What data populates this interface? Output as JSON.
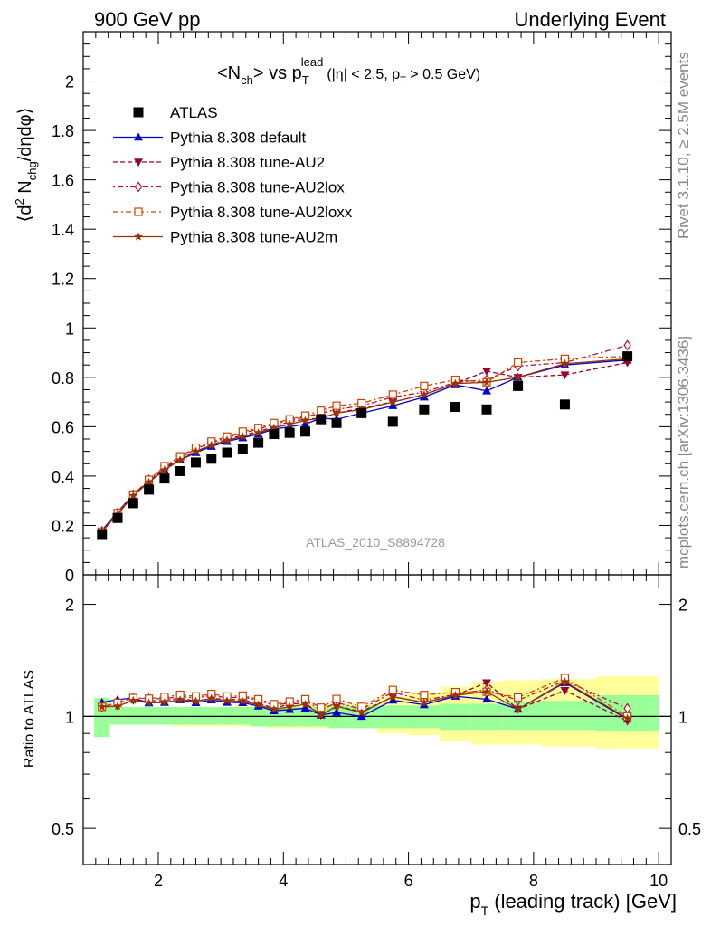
{
  "header": {
    "left": "900 GeV pp",
    "right": "Underlying Event"
  },
  "side_labels": {
    "rivet": "Rivet 3.1.10, ≥ 2.5M events",
    "mcplots": "mcplots.cern.ch [arXiv:1306.3436]"
  },
  "main_plot": {
    "title_parts": {
      "open": "<N",
      "sub1": "ch",
      "mid": "> vs p",
      "sub2": "T",
      "sup2": "lead",
      "cond1": "(|η| < 2.5, p",
      "sub3": "T",
      "cond2": " > 0.5 GeV)"
    },
    "ylabel_parts": {
      "a": "⟨d",
      "b": "2",
      "c": " N",
      "d": "chg",
      "e": "/dηdφ⟩"
    },
    "watermark": "ATLAS_2010_S8894728",
    "ylim": [
      0,
      2.2
    ],
    "yticks": [
      "0",
      "0.2",
      "0.4",
      "0.6",
      "0.8",
      "1",
      "1.2",
      "1.4",
      "1.6",
      "1.8",
      "2"
    ]
  },
  "ratio_plot": {
    "ylabel": "Ratio to ATLAS",
    "log_scale": true,
    "ylim": [
      0.4,
      2.4
    ],
    "yticks": [
      "0.5",
      "1",
      "2"
    ]
  },
  "xaxis": {
    "label_parts": {
      "p": "p",
      "sub": "T",
      "rest": " (leading track) [GeV]"
    },
    "xlim": [
      0.8,
      10.2
    ],
    "xticks": [
      "2",
      "4",
      "6",
      "8",
      "10"
    ]
  },
  "legend": {
    "position": "top-left",
    "entries": [
      "ATLAS",
      "Pythia 8.308 default",
      "Pythia 8.308 tune-AU2",
      "Pythia 8.308 tune-AU2lox",
      "Pythia 8.308 tune-AU2loxx",
      "Pythia 8.308 tune-AU2m"
    ]
  },
  "colors": {
    "data": "#000000",
    "default": "#0000cc",
    "au2": "#990033",
    "au2lox": "#bb1133",
    "au2loxx": "#cc4400",
    "au2m": "#993300",
    "band_inner": "#99ff99",
    "band_outer": "#ffff99"
  },
  "chart_data": {
    "type": "scatter",
    "x": [
      1.1,
      1.35,
      1.6,
      1.85,
      2.1,
      2.35,
      2.6,
      2.85,
      3.1,
      3.35,
      3.6,
      3.85,
      4.1,
      4.35,
      4.6,
      4.85,
      5.25,
      5.75,
      6.25,
      6.75,
      7.25,
      7.75,
      8.5,
      9.5
    ],
    "data": {
      "name": "ATLAS",
      "values": [
        0.165,
        0.23,
        0.29,
        0.345,
        0.39,
        0.42,
        0.455,
        0.47,
        0.495,
        0.51,
        0.535,
        0.57,
        0.575,
        0.58,
        0.63,
        0.615,
        0.655,
        0.62,
        0.67,
        0.68,
        0.67,
        0.765,
        0.69,
        0.885
      ],
      "band_inner": [
        [
          0.88,
          1.12
        ],
        [
          0.95,
          1.06
        ],
        [
          0.95,
          1.06
        ],
        [
          0.95,
          1.06
        ],
        [
          0.95,
          1.06
        ],
        [
          0.95,
          1.06
        ],
        [
          0.95,
          1.06
        ],
        [
          0.95,
          1.06
        ],
        [
          0.95,
          1.06
        ],
        [
          0.95,
          1.06
        ],
        [
          0.94,
          1.06
        ],
        [
          0.94,
          1.06
        ],
        [
          0.94,
          1.06
        ],
        [
          0.94,
          1.06
        ],
        [
          0.94,
          1.06
        ],
        [
          0.93,
          1.07
        ],
        [
          0.93,
          1.07
        ],
        [
          0.93,
          1.07
        ],
        [
          0.93,
          1.07
        ],
        [
          0.92,
          1.08
        ],
        [
          0.92,
          1.08
        ],
        [
          0.92,
          1.09
        ],
        [
          0.92,
          1.1
        ],
        [
          0.91,
          1.14
        ]
      ],
      "band_outer": [
        [
          0.92,
          1.09
        ],
        [
          0.95,
          1.06
        ],
        [
          0.95,
          1.06
        ],
        [
          0.95,
          1.06
        ],
        [
          0.95,
          1.06
        ],
        [
          0.94,
          1.06
        ],
        [
          0.94,
          1.06
        ],
        [
          0.94,
          1.06
        ],
        [
          0.94,
          1.06
        ],
        [
          0.94,
          1.07
        ],
        [
          0.94,
          1.07
        ],
        [
          0.93,
          1.07
        ],
        [
          0.93,
          1.07
        ],
        [
          0.93,
          1.07
        ],
        [
          0.93,
          1.07
        ],
        [
          0.93,
          1.08
        ],
        [
          0.93,
          1.08
        ],
        [
          0.9,
          1.13
        ],
        [
          0.89,
          1.16
        ],
        [
          0.86,
          1.2
        ],
        [
          0.84,
          1.24
        ],
        [
          0.84,
          1.25
        ],
        [
          0.83,
          1.26
        ],
        [
          0.82,
          1.28
        ]
      ]
    },
    "series": [
      {
        "name": "Pythia 8.308 default",
        "color": "#0000cc",
        "marker": "triangle-up",
        "dash": "",
        "values": [
          0.18,
          0.255,
          0.325,
          0.375,
          0.425,
          0.465,
          0.495,
          0.52,
          0.54,
          0.555,
          0.57,
          0.59,
          0.6,
          0.61,
          0.635,
          0.63,
          0.655,
          0.685,
          0.72,
          0.77,
          0.745,
          0.8,
          0.85,
          0.87
        ]
      },
      {
        "name": "Pythia 8.308 tune-AU2",
        "color": "#990033",
        "marker": "triangle-down",
        "dash": "5,3",
        "values": [
          0.175,
          0.245,
          0.32,
          0.38,
          0.43,
          0.47,
          0.5,
          0.525,
          0.55,
          0.565,
          0.58,
          0.6,
          0.62,
          0.63,
          0.635,
          0.655,
          0.675,
          0.7,
          0.73,
          0.775,
          0.825,
          0.8,
          0.81,
          0.86
        ]
      },
      {
        "name": "Pythia 8.308 tune-AU2lox",
        "color": "#bb1133",
        "marker": "diamond-open",
        "dash": "2,3,6,3",
        "values": [
          0.175,
          0.25,
          0.325,
          0.385,
          0.435,
          0.475,
          0.51,
          0.535,
          0.555,
          0.575,
          0.59,
          0.61,
          0.625,
          0.64,
          0.655,
          0.67,
          0.685,
          0.72,
          0.74,
          0.78,
          0.79,
          0.845,
          0.86,
          0.93
        ]
      },
      {
        "name": "Pythia 8.308 tune-AU2loxx",
        "color": "#cc4400",
        "marker": "square-open",
        "dash": "6,3,2,3",
        "values": [
          0.175,
          0.25,
          0.325,
          0.385,
          0.44,
          0.48,
          0.515,
          0.54,
          0.56,
          0.58,
          0.595,
          0.615,
          0.63,
          0.645,
          0.665,
          0.685,
          0.695,
          0.73,
          0.765,
          0.79,
          0.78,
          0.86,
          0.875,
          0.885
        ]
      },
      {
        "name": "Pythia 8.308 tune-AU2m",
        "color": "#993300",
        "marker": "star",
        "dash": "",
        "values": [
          0.175,
          0.245,
          0.32,
          0.375,
          0.425,
          0.465,
          0.5,
          0.525,
          0.545,
          0.56,
          0.575,
          0.595,
          0.61,
          0.625,
          0.635,
          0.655,
          0.67,
          0.7,
          0.73,
          0.775,
          0.78,
          0.8,
          0.855,
          0.875
        ]
      }
    ],
    "ratio_reference": 1
  }
}
